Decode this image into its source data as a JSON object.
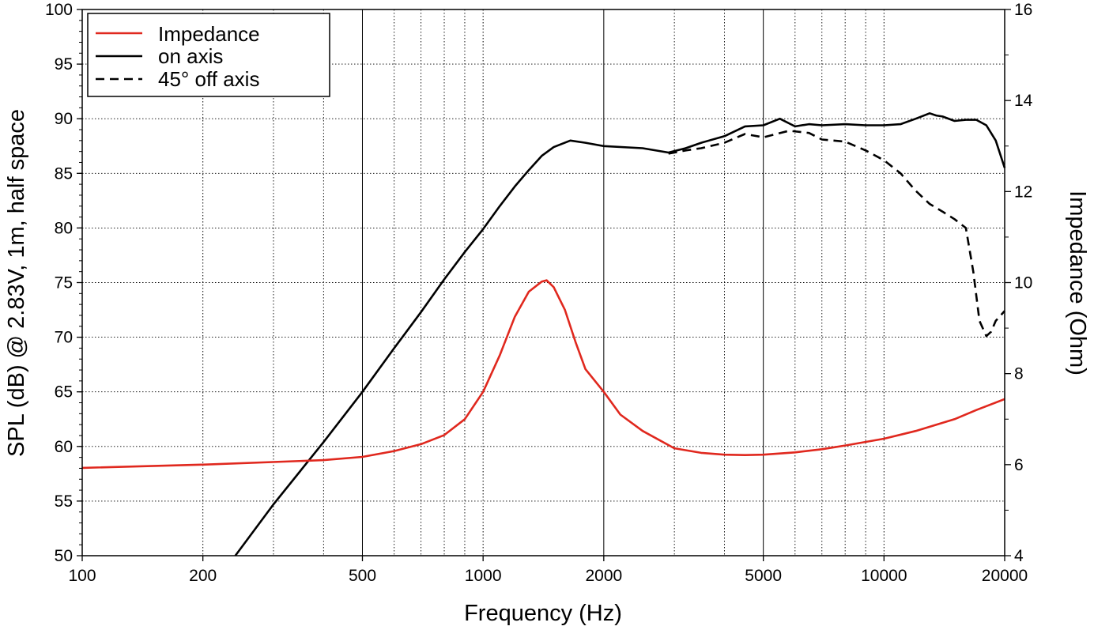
{
  "chart_data": {
    "type": "line",
    "xlabel": "Frequency (Hz)",
    "ylabel": "SPL (dB) @ 2.83V, 1m, half space",
    "y2label": "Impedance (Ohm)",
    "xscale": "log",
    "xlim": [
      100,
      20000
    ],
    "ylim": [
      50,
      100
    ],
    "y2lim": [
      4,
      16
    ],
    "x_ticks": [
      100,
      200,
      500,
      1000,
      2000,
      5000,
      10000,
      20000
    ],
    "y_ticks": [
      50,
      55,
      60,
      65,
      70,
      75,
      80,
      85,
      90,
      95,
      100
    ],
    "y2_ticks": [
      4,
      6,
      8,
      10,
      12,
      14,
      16
    ],
    "grid": true,
    "legend_position": "top-left",
    "series": [
      {
        "name": "Impedance",
        "axis": "right",
        "color": "#e0281e",
        "style": "solid",
        "x": [
          100,
          200,
          400,
          500,
          600,
          700,
          800,
          900,
          1000,
          1100,
          1200,
          1300,
          1400,
          1440,
          1500,
          1600,
          1700,
          1800,
          2000,
          2200,
          2500,
          3000,
          3500,
          4000,
          4500,
          5000,
          6000,
          7000,
          8000,
          10000,
          12000,
          15000,
          17000,
          20000
        ],
        "y": [
          5.93,
          6.0,
          6.1,
          6.17,
          6.3,
          6.45,
          6.65,
          7.0,
          7.6,
          8.4,
          9.25,
          9.8,
          10.02,
          10.05,
          9.9,
          9.4,
          8.7,
          8.1,
          7.6,
          7.1,
          6.74,
          6.36,
          6.26,
          6.22,
          6.21,
          6.22,
          6.27,
          6.34,
          6.42,
          6.57,
          6.74,
          7.0,
          7.2,
          7.44
        ]
      },
      {
        "name": "on axis",
        "axis": "left",
        "color": "#000000",
        "style": "solid",
        "x": [
          241,
          300,
          400,
          500,
          600,
          700,
          800,
          900,
          1000,
          1100,
          1200,
          1300,
          1400,
          1500,
          1650,
          1800,
          2000,
          2500,
          2900,
          3200,
          3500,
          4000,
          4500,
          5000,
          5500,
          6000,
          6500,
          7000,
          8000,
          9000,
          10000,
          11000,
          12000,
          13000,
          13500,
          14000,
          15000,
          16000,
          17000,
          18000,
          19000,
          20000
        ],
        "y": [
          50,
          54.7,
          60.4,
          65,
          69,
          72.3,
          75.3,
          77.8,
          79.9,
          82,
          83.8,
          85.3,
          86.6,
          87.4,
          88,
          87.8,
          87.5,
          87.3,
          86.9,
          87.3,
          87.8,
          88.4,
          89.3,
          89.4,
          90,
          89.3,
          89.5,
          89.4,
          89.5,
          89.4,
          89.4,
          89.5,
          90,
          90.5,
          90.3,
          90.2,
          89.8,
          89.9,
          89.9,
          89.4,
          88,
          85.5
        ]
      },
      {
        "name": "45° off axis",
        "axis": "left",
        "color": "#000000",
        "style": "dashed",
        "x": [
          2900,
          3200,
          3500,
          4000,
          4500,
          5000,
          5800,
          6500,
          7000,
          8000,
          9000,
          10000,
          11000,
          12000,
          13000,
          14000,
          15000,
          16000,
          16700,
          17300,
          18000,
          18500,
          19000,
          20000
        ],
        "y": [
          86.8,
          87.1,
          87.3,
          87.8,
          88.6,
          88.3,
          88.9,
          88.7,
          88.1,
          87.9,
          87.1,
          86.2,
          85,
          83.4,
          82.2,
          81.5,
          80.8,
          80,
          76,
          71.5,
          70.1,
          70.5,
          71.5,
          72.4
        ]
      }
    ]
  }
}
